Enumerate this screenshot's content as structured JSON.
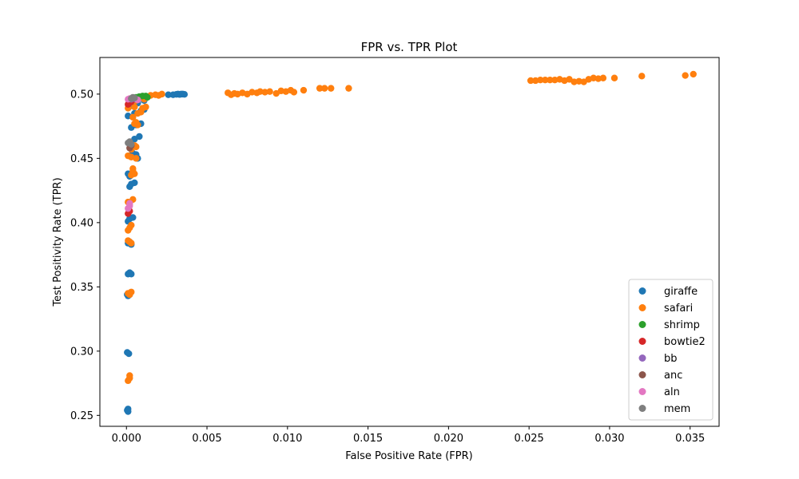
{
  "chart_data": {
    "type": "scatter",
    "title": "FPR vs. TPR Plot",
    "xlabel": "False Positive Rate (FPR)",
    "ylabel": "Test Positivity Rate (TPR)",
    "xlim": [
      -0.00165,
      0.0368
    ],
    "ylim": [
      0.2415,
      0.5285
    ],
    "xticks": [
      0.0,
      0.005,
      0.01,
      0.015,
      0.02,
      0.025,
      0.03,
      0.035
    ],
    "xtick_labels": [
      "0.000",
      "0.005",
      "0.010",
      "0.015",
      "0.020",
      "0.025",
      "0.030",
      "0.035"
    ],
    "yticks": [
      0.25,
      0.3,
      0.35,
      0.4,
      0.45,
      0.5
    ],
    "ytick_labels": [
      "0.25",
      "0.30",
      "0.35",
      "0.40",
      "0.45",
      "0.50"
    ],
    "grid": false,
    "legend_position": "bottom-right",
    "series": [
      {
        "name": "giraffe",
        "color": "#1f77b4",
        "points": [
          [
            5e-05,
            0.254
          ],
          [
            0.0001,
            0.255
          ],
          [
            0.0001,
            0.253
          ],
          [
            5e-05,
            0.299
          ],
          [
            0.00015,
            0.298
          ],
          [
            5e-05,
            0.344
          ],
          [
            0.0001,
            0.343
          ],
          [
            0.0002,
            0.344
          ],
          [
            0.0001,
            0.36
          ],
          [
            0.0002,
            0.361
          ],
          [
            0.0003,
            0.36
          ],
          [
            0.0001,
            0.384
          ],
          [
            0.0002,
            0.385
          ],
          [
            0.0003,
            0.383
          ],
          [
            0.0001,
            0.401
          ],
          [
            0.0002,
            0.403
          ],
          [
            0.0004,
            0.404
          ],
          [
            0.0002,
            0.428
          ],
          [
            0.0003,
            0.43
          ],
          [
            0.0005,
            0.431
          ],
          [
            0.0001,
            0.438
          ],
          [
            0.0002,
            0.436
          ],
          [
            0.0002,
            0.452
          ],
          [
            0.0004,
            0.454
          ],
          [
            0.0006,
            0.453
          ],
          [
            0.0007,
            0.45
          ],
          [
            0.0002,
            0.462
          ],
          [
            0.0005,
            0.465
          ],
          [
            0.0008,
            0.467
          ],
          [
            0.0003,
            0.474
          ],
          [
            0.0006,
            0.476
          ],
          [
            0.0009,
            0.477
          ],
          [
            0.0001,
            0.483
          ],
          [
            0.0005,
            0.485
          ],
          [
            0.0009,
            0.487
          ],
          [
            0.0011,
            0.488
          ],
          [
            0.0003,
            0.491
          ],
          [
            0.0007,
            0.493
          ],
          [
            0.0011,
            0.495
          ],
          [
            0.0004,
            0.497
          ],
          [
            0.0008,
            0.498
          ],
          [
            0.0012,
            0.498
          ],
          [
            0.0026,
            0.4995
          ],
          [
            0.0029,
            0.4995
          ],
          [
            0.0031,
            0.4998
          ],
          [
            0.0032,
            0.5
          ],
          [
            0.0033,
            0.4997
          ],
          [
            0.0034,
            0.5
          ],
          [
            0.0035,
            0.5
          ],
          [
            0.0036,
            0.4998
          ]
        ]
      },
      {
        "name": "safari",
        "color": "#ff7f0e",
        "points": [
          [
            0.0001,
            0.277
          ],
          [
            0.0002,
            0.279
          ],
          [
            0.0002,
            0.281
          ],
          [
            0.0001,
            0.345
          ],
          [
            0.0002,
            0.344
          ],
          [
            0.0003,
            0.346
          ],
          [
            0.0001,
            0.386
          ],
          [
            0.0002,
            0.385
          ],
          [
            0.0003,
            0.384
          ],
          [
            0.0001,
            0.394
          ],
          [
            0.0002,
            0.396
          ],
          [
            0.0003,
            0.398
          ],
          [
            0.0001,
            0.416
          ],
          [
            0.0002,
            0.415
          ],
          [
            0.0004,
            0.418
          ],
          [
            0.0003,
            0.437
          ],
          [
            0.0004,
            0.44
          ],
          [
            0.0005,
            0.438
          ],
          [
            0.0004,
            0.442
          ],
          [
            0.0001,
            0.452
          ],
          [
            0.0003,
            0.451
          ],
          [
            0.0006,
            0.45
          ],
          [
            0.0003,
            0.457
          ],
          [
            0.0005,
            0.46
          ],
          [
            0.0006,
            0.459
          ],
          [
            0.0005,
            0.477
          ],
          [
            0.0006,
            0.478
          ],
          [
            0.0007,
            0.476
          ],
          [
            0.0004,
            0.482
          ],
          [
            0.0007,
            0.485
          ],
          [
            0.0009,
            0.486
          ],
          [
            0.0001,
            0.489
          ],
          [
            0.0005,
            0.49
          ],
          [
            0.001,
            0.489
          ],
          [
            0.0012,
            0.49
          ],
          [
            0.0002,
            0.494
          ],
          [
            0.0006,
            0.495
          ],
          [
            0.0011,
            0.496
          ],
          [
            0.0015,
            0.499
          ],
          [
            0.0018,
            0.4995
          ],
          [
            0.002,
            0.499
          ],
          [
            0.0022,
            0.5
          ],
          [
            0.0063,
            0.501
          ],
          [
            0.0065,
            0.4995
          ],
          [
            0.0067,
            0.5005
          ],
          [
            0.0069,
            0.5
          ],
          [
            0.0072,
            0.501
          ],
          [
            0.0075,
            0.5
          ],
          [
            0.0078,
            0.5015
          ],
          [
            0.0081,
            0.501
          ],
          [
            0.0083,
            0.502
          ],
          [
            0.0086,
            0.5015
          ],
          [
            0.0089,
            0.502
          ],
          [
            0.0093,
            0.5005
          ],
          [
            0.0096,
            0.5025
          ],
          [
            0.0099,
            0.502
          ],
          [
            0.0102,
            0.503
          ],
          [
            0.0104,
            0.5015
          ],
          [
            0.011,
            0.503
          ],
          [
            0.012,
            0.5045
          ],
          [
            0.0123,
            0.5045
          ],
          [
            0.0127,
            0.5045
          ],
          [
            0.0138,
            0.5045
          ],
          [
            0.0251,
            0.5105
          ],
          [
            0.0254,
            0.5105
          ],
          [
            0.0257,
            0.511
          ],
          [
            0.026,
            0.511
          ],
          [
            0.0263,
            0.511
          ],
          [
            0.0266,
            0.511
          ],
          [
            0.0269,
            0.5115
          ],
          [
            0.0272,
            0.5105
          ],
          [
            0.0275,
            0.5115
          ],
          [
            0.0278,
            0.5095
          ],
          [
            0.0281,
            0.51
          ],
          [
            0.0284,
            0.5095
          ],
          [
            0.0287,
            0.5115
          ],
          [
            0.029,
            0.5125
          ],
          [
            0.0293,
            0.512
          ],
          [
            0.0296,
            0.5125
          ],
          [
            0.0303,
            0.5125
          ],
          [
            0.032,
            0.514
          ],
          [
            0.0347,
            0.5145
          ],
          [
            0.0352,
            0.5155
          ]
        ]
      },
      {
        "name": "shrimp",
        "color": "#2ca02c",
        "points": [
          [
            0.0006,
            0.4975
          ],
          [
            0.0008,
            0.498
          ],
          [
            0.001,
            0.4985
          ],
          [
            0.0012,
            0.4985
          ],
          [
            0.0013,
            0.4975
          ]
        ]
      },
      {
        "name": "bowtie2",
        "color": "#d62728",
        "points": [
          [
            0.0001,
            0.407
          ],
          [
            0.0002,
            0.409
          ],
          [
            0.0001,
            0.492
          ],
          [
            0.0002,
            0.4935
          ],
          [
            0.0003,
            0.494
          ]
        ]
      },
      {
        "name": "bb",
        "color": "#9467bd",
        "points": [
          [
            0.0003,
            0.496
          ],
          [
            0.0005,
            0.497
          ],
          [
            0.0006,
            0.496
          ]
        ]
      },
      {
        "name": "anc",
        "color": "#8c564b",
        "points": [
          [
            0.0002,
            0.458
          ],
          [
            0.0003,
            0.46
          ]
        ]
      },
      {
        "name": "aln",
        "color": "#e377c2",
        "points": [
          [
            0.0001,
            0.411
          ],
          [
            0.0002,
            0.413
          ],
          [
            0.0002,
            0.415
          ],
          [
            0.0001,
            0.496
          ],
          [
            0.0002,
            0.4965
          ],
          [
            0.0007,
            0.4955
          ]
        ]
      },
      {
        "name": "mem",
        "color": "#7f7f7f",
        "points": [
          [
            0.0001,
            0.462
          ],
          [
            0.0002,
            0.463
          ],
          [
            0.0003,
            0.461
          ],
          [
            0.0003,
            0.4965
          ],
          [
            0.0004,
            0.4975
          ],
          [
            0.0005,
            0.497
          ]
        ]
      }
    ]
  }
}
